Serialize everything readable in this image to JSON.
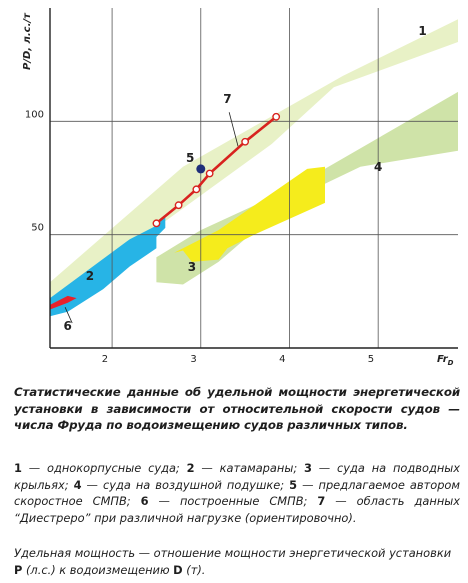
{
  "chart_data": {
    "type": "area",
    "ylabel": "P/D, л.с./т",
    "xlabel": "Fr_D",
    "xlim": [
      1.3,
      5.9
    ],
    "ylim": [
      0,
      150
    ],
    "grid": true,
    "xticks": [
      "2",
      "3",
      "4",
      "5"
    ],
    "yticks": [
      "50",
      "100"
    ],
    "regions": [
      {
        "name": "1",
        "color": "#e8f1c6",
        "polygon": [
          [
            1.3,
            19
          ],
          [
            1.3,
            29
          ],
          [
            2.8,
            80
          ],
          [
            4.6,
            120
          ],
          [
            5.9,
            145
          ],
          [
            5.9,
            135
          ],
          [
            4.5,
            115
          ],
          [
            3.8,
            90
          ]
        ]
      },
      {
        "name": "4",
        "color": "#cfe3a8",
        "polygon": [
          [
            2.5,
            40
          ],
          [
            3.0,
            52
          ],
          [
            4.0,
            70
          ],
          [
            5.9,
            113
          ],
          [
            5.9,
            87
          ],
          [
            4.8,
            80
          ],
          [
            4.0,
            65
          ],
          [
            3.2,
            38
          ],
          [
            2.8,
            28
          ],
          [
            2.5,
            29
          ]
        ]
      },
      {
        "name": "3",
        "color": "#f5ec1c",
        "polygon": [
          [
            2.7,
            42
          ],
          [
            3.2,
            52
          ],
          [
            4.2,
            79
          ],
          [
            4.4,
            80
          ],
          [
            4.4,
            64
          ],
          [
            3.6,
            50
          ],
          [
            3.3,
            44
          ],
          [
            3.2,
            39
          ],
          [
            2.9,
            38
          ],
          [
            2.8,
            43
          ]
        ]
      },
      {
        "name": "2",
        "color": "#27b4e6",
        "polygon": [
          [
            1.3,
            22
          ],
          [
            2.2,
            48
          ],
          [
            2.5,
            54
          ],
          [
            2.6,
            58
          ],
          [
            2.6,
            53
          ],
          [
            2.5,
            49
          ],
          [
            2.5,
            44
          ],
          [
            2.2,
            36
          ],
          [
            1.9,
            26
          ],
          [
            1.5,
            16
          ],
          [
            1.3,
            14
          ]
        ]
      },
      {
        "name": "6",
        "color": "#e8212b",
        "polygon": [
          [
            1.3,
            19
          ],
          [
            1.5,
            23
          ],
          [
            1.6,
            22
          ],
          [
            1.5,
            20
          ],
          [
            1.3,
            17
          ]
        ]
      }
    ],
    "series": [
      {
        "name": "7",
        "color": "#d8231f",
        "x": [
          2.5,
          2.75,
          2.95,
          3.1,
          3.5,
          3.85
        ],
        "y": [
          55,
          63,
          70,
          77,
          91,
          102
        ]
      }
    ],
    "points": [
      {
        "name": "5",
        "x": 3.0,
        "y": 79,
        "color": "#1f2f7a"
      }
    ],
    "region_labels": [
      {
        "text": "1",
        "x": 5.5,
        "y": 138
      },
      {
        "text": "2",
        "x": 1.75,
        "y": 30
      },
      {
        "text": "3",
        "x": 2.9,
        "y": 34
      },
      {
        "text": "4",
        "x": 5.0,
        "y": 78
      },
      {
        "text": "5",
        "x": 2.88,
        "y": 82
      },
      {
        "text": "6",
        "x": 1.5,
        "y": 8
      },
      {
        "text": "7",
        "x": 3.3,
        "y": 108
      }
    ]
  },
  "caption": "Статистические данные об удельной мощности энергетической установки в зависимости от относительной скорости судов — числа Фруда по водоизмещению судов различных типов.",
  "legend": [
    {
      "num": "1",
      "text": " — однокорпусные суда; "
    },
    {
      "num": "2",
      "text": " — катамараны; "
    },
    {
      "num": "3",
      "text": " — суда на подводных крыльях; "
    },
    {
      "num": "4",
      "text": " — суда на воздушной подушке; "
    },
    {
      "num": "5",
      "text": " — предлагаемое автором скоростное СМПВ; "
    },
    {
      "num": "6",
      "text": " — построенные СМПВ; "
    },
    {
      "num": "7",
      "text": " — область данных “Диестреро” при различной нагрузке (ориентировочно)."
    }
  ],
  "note": {
    "prefix": "Удельная мощность — отношение мощности энергетической установки ",
    "P": "P",
    "unit_p": " (л.с.) к водоизмещению ",
    "D": "D",
    "unit_d": " (т)."
  },
  "colors": {
    "grid": "#555555",
    "axis": "#222222",
    "label": "#222222"
  }
}
